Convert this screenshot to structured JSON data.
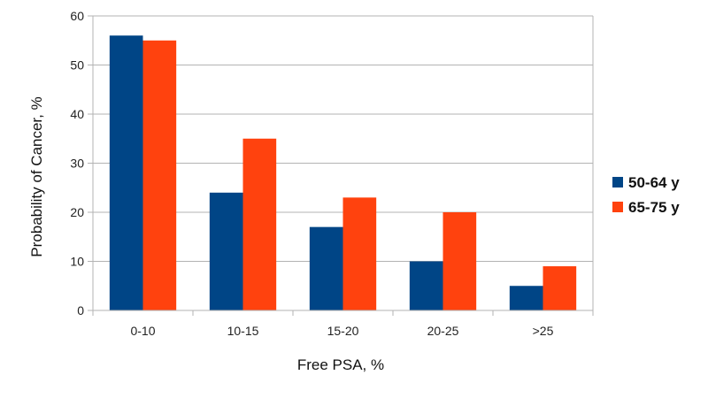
{
  "chart_data": {
    "type": "bar",
    "title": "",
    "xlabel": "Free PSA, %",
    "ylabel": "Probability of Cancer, %",
    "categories": [
      "0-10",
      "10-15",
      "15-20",
      "20-25",
      ">25"
    ],
    "series": [
      {
        "name": "50-64 y",
        "color": "#004586",
        "values": [
          56,
          24,
          17,
          10,
          5
        ]
      },
      {
        "name": "65-75 y",
        "color": "#ff420e",
        "values": [
          55,
          35,
          23,
          20,
          9
        ]
      }
    ],
    "ylim": [
      0,
      60
    ],
    "yticks": [
      0,
      10,
      20,
      30,
      40,
      50,
      60
    ],
    "grid": true,
    "legend_position": "right"
  }
}
